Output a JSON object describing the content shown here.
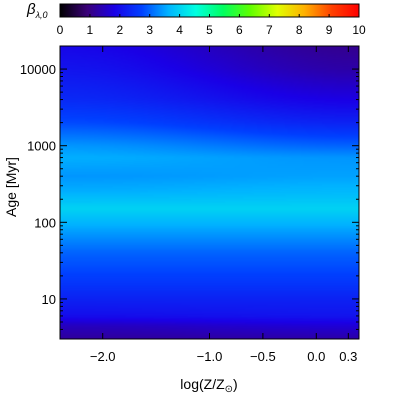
{
  "chart_data": {
    "type": "heatmap",
    "colorbar": {
      "label_main": "β",
      "label_sub": "λ,0",
      "range": [
        0,
        10
      ],
      "ticks": [
        "0",
        "1",
        "2",
        "3",
        "4",
        "5",
        "6",
        "7",
        "8",
        "9",
        "10"
      ],
      "colormap": [
        "#000000",
        "#3a0078",
        "#1a00e6",
        "#0040ff",
        "#00b4ff",
        "#00ffe0",
        "#00ff60",
        "#60ff00",
        "#e0ff00",
        "#ffb000",
        "#ff4000",
        "#ff0000"
      ]
    },
    "x_axis": {
      "label": "log(Z/Z",
      "label_symbol": "⊙",
      "label_close": ")",
      "range": [
        -2.4,
        0.4
      ],
      "ticks": [
        {
          "value": -2.0,
          "label": "−2.0"
        },
        {
          "value": -1.0,
          "label": "−1.0"
        },
        {
          "value": -0.5,
          "label": "−0.5"
        },
        {
          "value": 0.0,
          "label": "0.0"
        },
        {
          "value": 0.3,
          "label": "0.3"
        }
      ]
    },
    "y_axis": {
      "label": "Age [Myr]",
      "scale": "log",
      "range": [
        3,
        20000
      ],
      "ticks": [
        {
          "value": 10,
          "label": "10"
        },
        {
          "value": 100,
          "label": "100"
        },
        {
          "value": 1000,
          "label": "1000"
        },
        {
          "value": 10000,
          "label": "10000"
        }
      ]
    },
    "profile_low_metallicity": [
      {
        "age": 3,
        "beta": 1.2
      },
      {
        "age": 4.5,
        "beta": 1.5
      },
      {
        "age": 6,
        "beta": 2.0
      },
      {
        "age": 10,
        "beta": 2.3
      },
      {
        "age": 20,
        "beta": 2.7
      },
      {
        "age": 40,
        "beta": 3.0
      },
      {
        "age": 80,
        "beta": 3.5
      },
      {
        "age": 150,
        "beta": 4.0
      },
      {
        "age": 250,
        "beta": 3.6
      },
      {
        "age": 400,
        "beta": 3.4
      },
      {
        "age": 700,
        "beta": 3.6
      },
      {
        "age": 1000,
        "beta": 3.4
      },
      {
        "age": 2000,
        "beta": 2.8
      },
      {
        "age": 4000,
        "beta": 2.4
      },
      {
        "age": 10000,
        "beta": 2.1
      },
      {
        "age": 20000,
        "beta": 1.9
      }
    ],
    "profile_high_metallicity": [
      {
        "age": 3,
        "beta": 1.3
      },
      {
        "age": 4.5,
        "beta": 1.7
      },
      {
        "age": 6,
        "beta": 2.1
      },
      {
        "age": 10,
        "beta": 2.3
      },
      {
        "age": 20,
        "beta": 2.7
      },
      {
        "age": 40,
        "beta": 3.0
      },
      {
        "age": 80,
        "beta": 3.5
      },
      {
        "age": 150,
        "beta": 4.0
      },
      {
        "age": 250,
        "beta": 3.7
      },
      {
        "age": 400,
        "beta": 3.5
      },
      {
        "age": 700,
        "beta": 3.4
      },
      {
        "age": 1000,
        "beta": 3.0
      },
      {
        "age": 2000,
        "beta": 2.3
      },
      {
        "age": 4000,
        "beta": 1.8
      },
      {
        "age": 10000,
        "beta": 1.3
      },
      {
        "age": 20000,
        "beta": 1.1
      }
    ]
  }
}
